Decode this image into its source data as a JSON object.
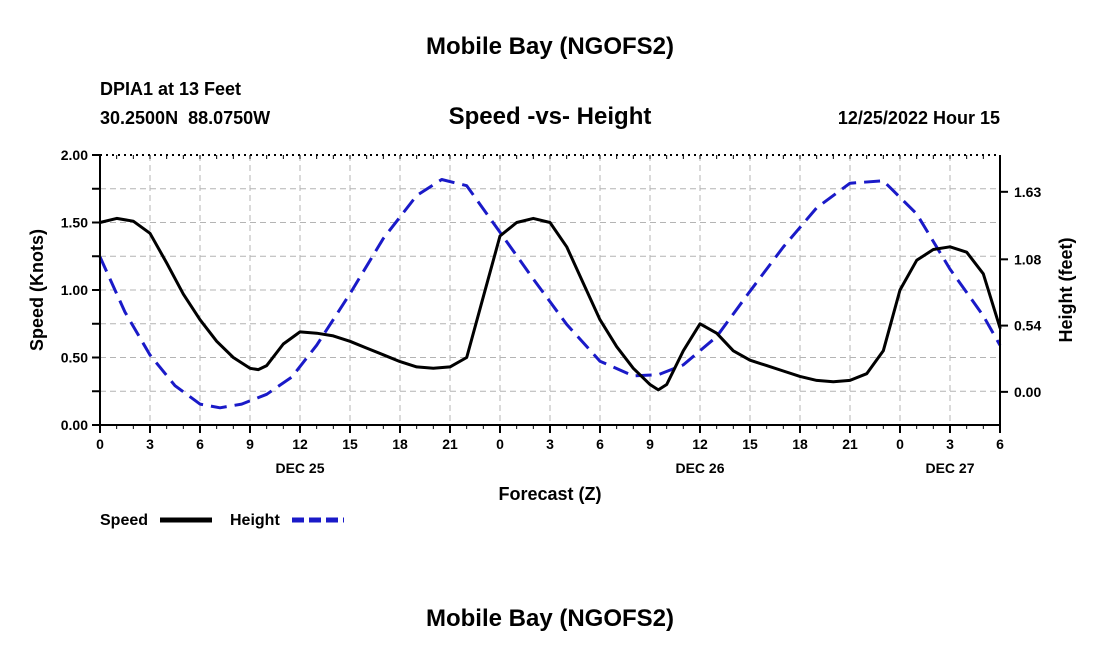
{
  "page": {
    "title": "Mobile Bay (NGOFS2)",
    "footer_title": "Mobile Bay (NGOFS2)",
    "station": "DPIA1 at 13 Feet",
    "coords": "30.2500N  88.0750W",
    "chart_title": "Speed -vs- Height",
    "date": "12/25/2022 Hour 15"
  },
  "chart_data": {
    "type": "line",
    "title": "Speed -vs- Height",
    "xlabel": "Forecast (Z)",
    "ylabel": "Speed (Knots)",
    "y2label": "Height (feet)",
    "xlim": [
      0,
      54
    ],
    "ylim": [
      0,
      2.0
    ],
    "y2lim": [
      -0.27,
      1.93
    ],
    "grid": true,
    "legend_position": "bottom-left",
    "x_ticks": [
      0,
      3,
      6,
      9,
      12,
      15,
      18,
      21,
      24,
      27,
      30,
      33,
      36,
      39,
      42,
      45,
      48,
      51,
      54
    ],
    "x_tick_labels": [
      "0",
      "3",
      "6",
      "9",
      "12",
      "15",
      "18",
      "21",
      "0",
      "3",
      "6",
      "9",
      "12",
      "15",
      "18",
      "21",
      "0",
      "3",
      "6"
    ],
    "date_labels": [
      {
        "x": 12,
        "label": "DEC 25"
      },
      {
        "x": 36,
        "label": "DEC 26"
      },
      {
        "x": 51,
        "label": "DEC 27"
      }
    ],
    "y_ticks": [
      0.0,
      0.25,
      0.5,
      0.75,
      1.0,
      1.25,
      1.5,
      1.75,
      2.0
    ],
    "y_tick_labels": [
      "0.00",
      "",
      "0.50",
      "",
      "1.00",
      "",
      "1.50",
      "",
      "2.00"
    ],
    "y2_ticks": [
      0.0,
      0.54,
      1.08,
      1.63
    ],
    "y2_tick_labels": [
      "0.00",
      "0.54",
      "1.08",
      "1.63"
    ],
    "series": [
      {
        "name": "Speed",
        "axis": "left",
        "color": "#000000",
        "dash": "solid",
        "x": [
          0,
          1,
          2,
          3,
          4,
          5,
          6,
          7,
          8,
          9,
          9.5,
          10,
          11,
          12,
          13,
          14,
          15,
          16,
          17,
          18,
          19,
          20,
          21,
          22,
          23,
          24,
          25,
          26,
          27,
          28,
          29,
          30,
          31,
          32,
          33,
          33.5,
          34,
          35,
          36,
          37,
          38,
          39,
          40,
          41,
          42,
          43,
          44,
          45,
          46,
          47,
          48,
          49,
          50,
          51,
          52,
          53,
          54
        ],
        "y": [
          1.5,
          1.53,
          1.51,
          1.42,
          1.2,
          0.97,
          0.78,
          0.62,
          0.5,
          0.42,
          0.41,
          0.44,
          0.6,
          0.69,
          0.68,
          0.66,
          0.62,
          0.57,
          0.52,
          0.47,
          0.43,
          0.42,
          0.43,
          0.5,
          0.95,
          1.4,
          1.5,
          1.53,
          1.5,
          1.32,
          1.05,
          0.78,
          0.58,
          0.42,
          0.3,
          0.26,
          0.3,
          0.55,
          0.75,
          0.68,
          0.55,
          0.48,
          0.44,
          0.4,
          0.36,
          0.33,
          0.32,
          0.33,
          0.38,
          0.55,
          1.0,
          1.22,
          1.3,
          1.32,
          1.28,
          1.12,
          0.72
        ]
      },
      {
        "name": "Height",
        "axis": "right",
        "color": "#1a1ac8",
        "dash": "dashed",
        "x": [
          0,
          1.5,
          3,
          4.5,
          6,
          7.2,
          8.5,
          10,
          11.5,
          13,
          15,
          17,
          19,
          20.5,
          22,
          24,
          26,
          28,
          30,
          32,
          33.5,
          35,
          37,
          39,
          41,
          43,
          45,
          47,
          49,
          51,
          53,
          54
        ],
        "y": [
          1.1,
          0.65,
          0.3,
          0.05,
          -0.1,
          -0.13,
          -0.1,
          -0.02,
          0.12,
          0.38,
          0.8,
          1.25,
          1.6,
          1.73,
          1.68,
          1.3,
          0.92,
          0.55,
          0.25,
          0.13,
          0.14,
          0.22,
          0.45,
          0.82,
          1.18,
          1.5,
          1.7,
          1.72,
          1.45,
          1.0,
          0.62,
          0.38
        ]
      }
    ]
  }
}
